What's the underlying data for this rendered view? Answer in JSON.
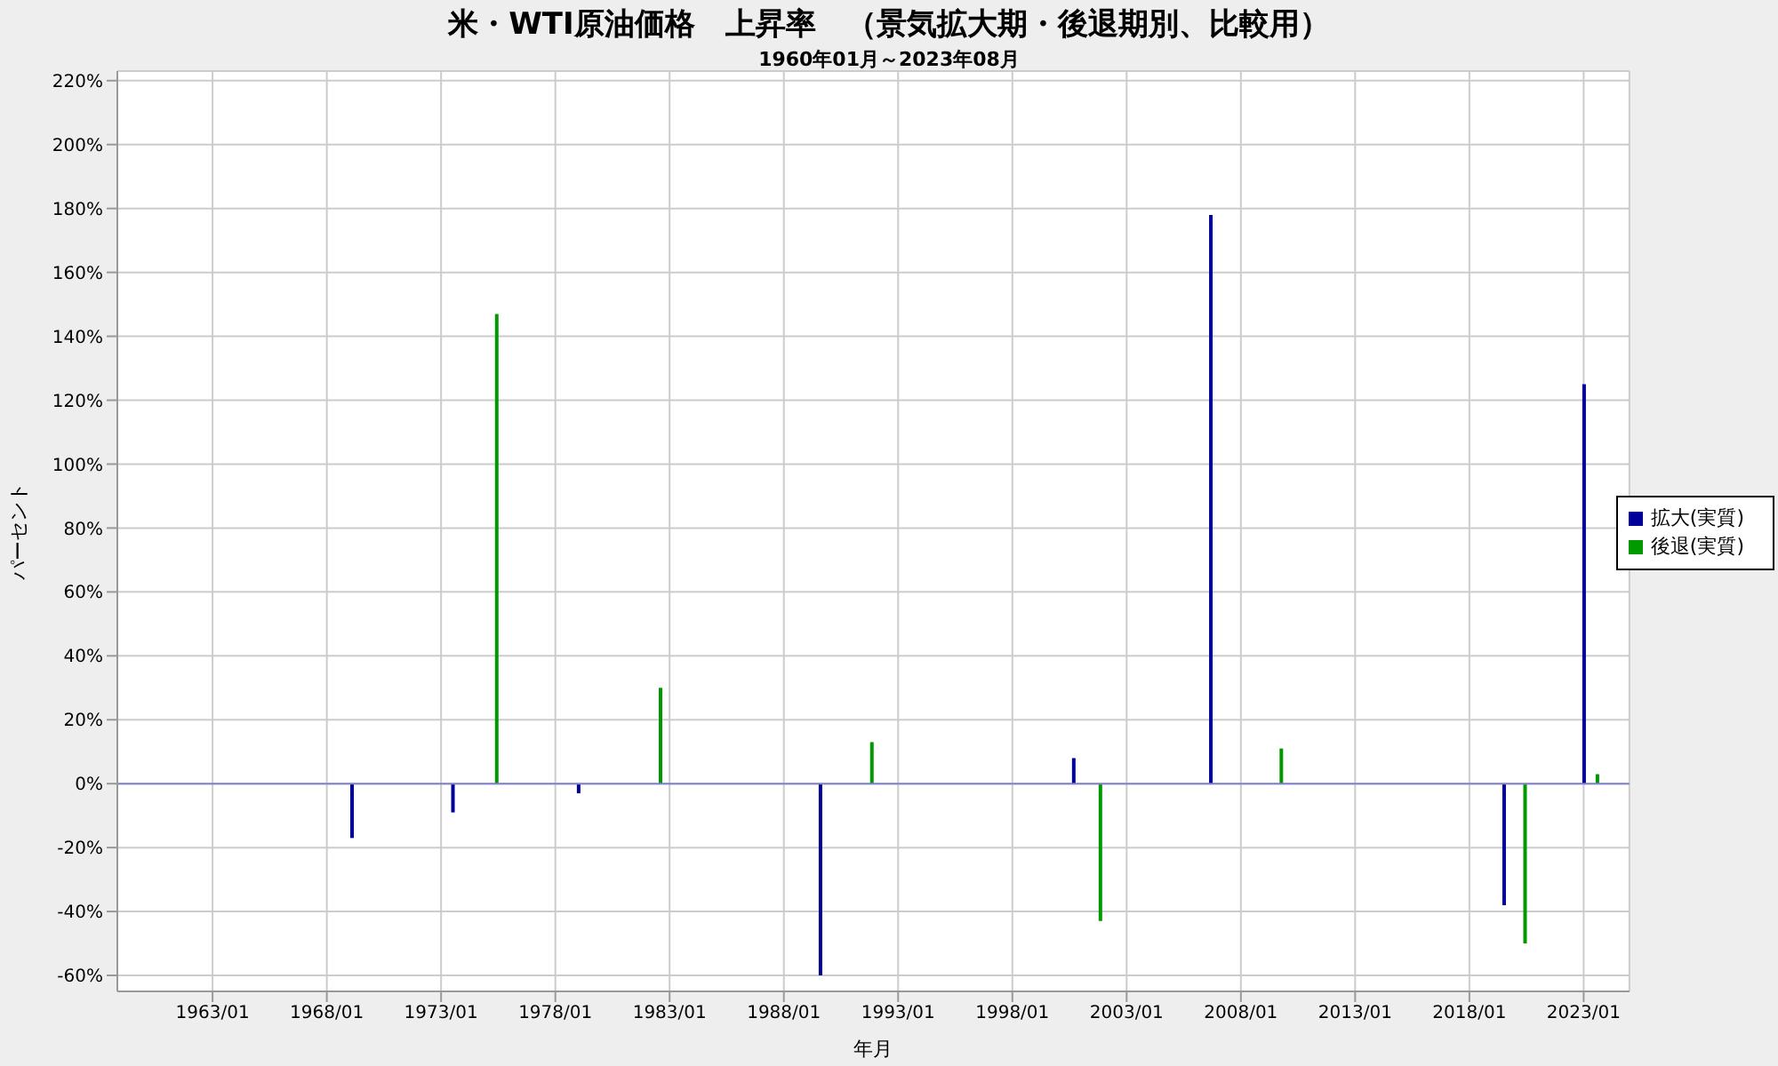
{
  "chart_data": {
    "type": "bar",
    "title": "米・WTI原油価格　上昇率　（景気拡大期・後退期別、比較用）",
    "subtitle": "1960年01月～2023年08月",
    "xlabel": "年月",
    "ylabel": "パーセント",
    "series": [
      {
        "name": "拡大(実質)",
        "color": "#000099",
        "x": [
          "1969-02",
          "1973-07",
          "1979-01",
          "1989-08",
          "2000-09",
          "2006-09",
          "2019-07",
          "2023-01"
        ],
        "values": [
          -17,
          -9,
          -3,
          -60,
          8,
          178,
          -38,
          125
        ]
      },
      {
        "name": "後退(実質)",
        "color": "#009900",
        "x": [
          "1975-06",
          "1982-08",
          "1991-11",
          "2001-11",
          "2009-10",
          "2020-06",
          "2023-08"
        ],
        "values": [
          147,
          30,
          13,
          -43,
          11,
          -50,
          3
        ]
      }
    ],
    "xlim": [
      "1958-11",
      "2025-01"
    ],
    "xticks": [
      {
        "value": "1963-01",
        "label": "1963/01"
      },
      {
        "value": "1968-01",
        "label": "1968/01"
      },
      {
        "value": "1973-01",
        "label": "1973/01"
      },
      {
        "value": "1978-01",
        "label": "1978/01"
      },
      {
        "value": "1983-01",
        "label": "1983/01"
      },
      {
        "value": "1988-01",
        "label": "1988/01"
      },
      {
        "value": "1993-01",
        "label": "1993/01"
      },
      {
        "value": "1998-01",
        "label": "1998/01"
      },
      {
        "value": "2003-01",
        "label": "2003/01"
      },
      {
        "value": "2008-01",
        "label": "2008/01"
      },
      {
        "value": "2013-01",
        "label": "2013/01"
      },
      {
        "value": "2018-01",
        "label": "2018/01"
      },
      {
        "value": "2023-01",
        "label": "2023/01"
      }
    ],
    "ylim": [
      -65,
      223
    ],
    "yticks": [
      {
        "value": -60,
        "label": "-60%"
      },
      {
        "value": -40,
        "label": "-40%"
      },
      {
        "value": -20,
        "label": "-20%"
      },
      {
        "value": 0,
        "label": "0%"
      },
      {
        "value": 20,
        "label": "20%"
      },
      {
        "value": 40,
        "label": "40%"
      },
      {
        "value": 60,
        "label": "60%"
      },
      {
        "value": 80,
        "label": "80%"
      },
      {
        "value": 100,
        "label": "100%"
      },
      {
        "value": 120,
        "label": "120%"
      },
      {
        "value": 140,
        "label": "140%"
      },
      {
        "value": 160,
        "label": "160%"
      },
      {
        "value": 180,
        "label": "180%"
      },
      {
        "value": 200,
        "label": "200%"
      },
      {
        "value": 220,
        "label": "220%"
      }
    ],
    "ref_lines": [
      {
        "axis": "y",
        "value": 0,
        "color": "#8080d0"
      }
    ],
    "grid": true,
    "legend": "right"
  }
}
